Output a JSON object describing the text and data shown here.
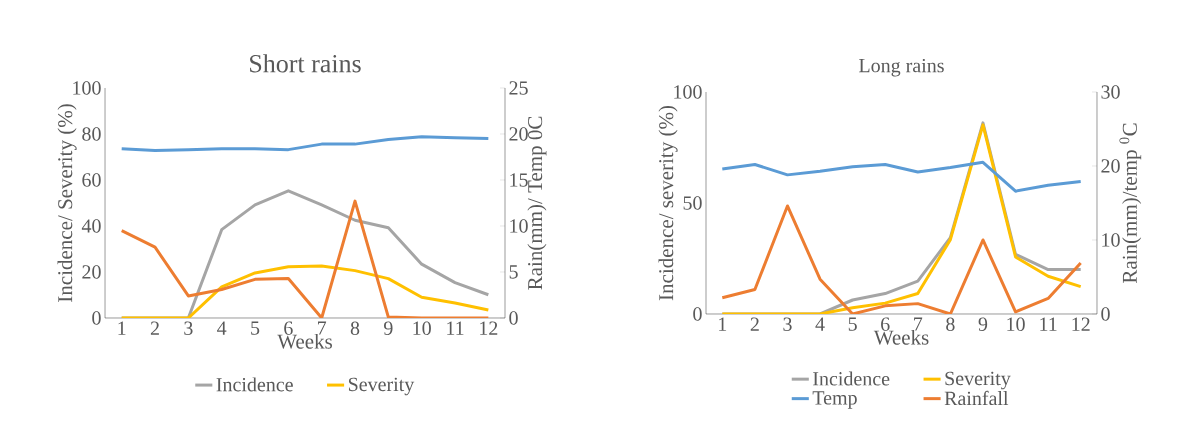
{
  "chart_data": [
    {
      "type": "line",
      "title": "Short rains",
      "xlabel": "Weeks",
      "ylabel": "Incidence/ Severity (%)",
      "y2label": "Rain(mm)/ Temp 0C",
      "categories": [
        "1",
        "2",
        "3",
        "4",
        "5",
        "6",
        "7",
        "8",
        "9",
        "10",
        "11",
        "12"
      ],
      "ylim": [
        0,
        100
      ],
      "yticks": [
        0,
        20,
        40,
        60,
        80,
        100
      ],
      "y2lim": [
        0,
        25
      ],
      "y2ticks": [
        0,
        5,
        10,
        15,
        20,
        25
      ],
      "legend": "bottom",
      "grid": false,
      "series": [
        {
          "name": "Incidence",
          "color": "#a5a5a5",
          "values": [
            0,
            0,
            0,
            38.4,
            49.2,
            55.3,
            49.2,
            42.5,
            39.2,
            23.4,
            15.4,
            10.1
          ]
        },
        {
          "name": "Severity",
          "color": "#ffc000",
          "values": [
            0,
            0,
            0,
            13.5,
            19.6,
            22.3,
            22.6,
            20.6,
            17.1,
            9,
            6.5,
            3.5
          ]
        },
        {
          "color": "#5b9bd5",
          "axis": "y2",
          "values": [
            18.4,
            18.2,
            18.3,
            18.4,
            18.4,
            18.3,
            18.9,
            18.9,
            19.4,
            19.7,
            19.6,
            19.5
          ]
        },
        {
          "color": "#ed7d31",
          "axis": "y2",
          "values": [
            9.5,
            7.7,
            2.4,
            3.1,
            4.2,
            4.3,
            0,
            12.7,
            0.1,
            0,
            0,
            0
          ]
        }
      ]
    },
    {
      "type": "line",
      "title": "Long rains",
      "xlabel": "Weeks",
      "ylabel": "Incidence/ severity (%)",
      "y2label": "Rain(mm)/temp $^{0}$C",
      "categories": [
        "1",
        "2",
        "3",
        "4",
        "5",
        "6",
        "7",
        "8",
        "9",
        "10",
        "11",
        "12"
      ],
      "ylim": [
        0,
        100
      ],
      "yticks": [
        0,
        50,
        100
      ],
      "y2lim": [
        0,
        30
      ],
      "y2ticks": [
        0,
        10,
        20,
        30
      ],
      "legend": "bottom",
      "grid": false,
      "series": [
        {
          "name": "Incidence",
          "color": "#a5a5a5",
          "values": [
            0,
            0,
            0,
            0,
            6.3,
            9.2,
            14.8,
            34.4,
            86.1,
            26.9,
            20,
            20
          ]
        },
        {
          "name": "Severity",
          "color": "#ffc000",
          "values": [
            0,
            0,
            0,
            0,
            2.8,
            4.9,
            9.2,
            33.5,
            85.2,
            25.7,
            17,
            12.3
          ]
        },
        {
          "name": "Temp",
          "color": "#5b9bd5",
          "axis": "y2",
          "values": [
            19.6,
            20.2,
            18.8,
            19.3,
            19.9,
            20.2,
            19.2,
            19.8,
            20.5,
            16.6,
            17.4,
            17.9
          ]
        },
        {
          "name": "Rainfall",
          "color": "#ed7d31",
          "axis": "y2",
          "values": [
            2.2,
            3.3,
            14.6,
            4.7,
            0,
            1.1,
            1.4,
            0,
            10,
            0.3,
            2.1,
            6.9
          ]
        }
      ]
    }
  ]
}
